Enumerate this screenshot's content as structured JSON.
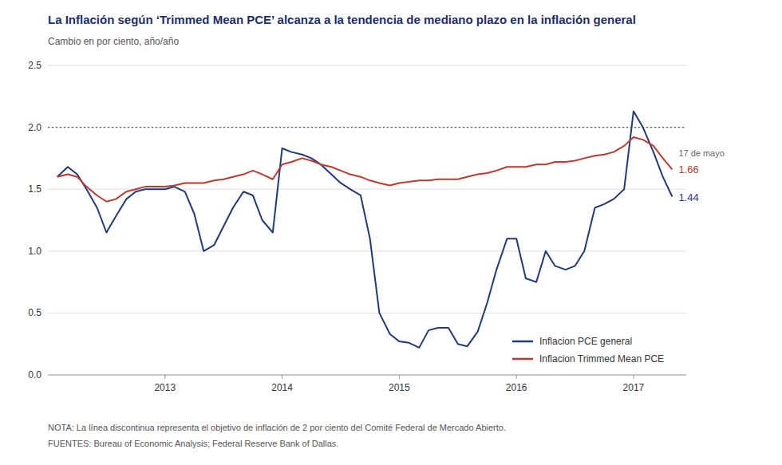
{
  "chart_data": {
    "type": "line",
    "title": "La Inflación según ‘Trimmed Mean PCE’ alcanza a la tendencia de mediano plazo en la inflación general",
    "subtitle": "Cambio en por ciento, año/año",
    "note": "NOTA: La línea discontinua representa el objetivo de inflación de 2 por ciento del Comité Federal de Mercado Abierto.",
    "source": "FUENTES: Bureau of Economic Analysis; Federal Reserve Bank of Dallas.",
    "annotations": [
      "17 de mayo",
      "1.66",
      "1.44"
    ],
    "reference_line": 2.0,
    "xlim": [
      2012.0,
      2017.45
    ],
    "xticks": [
      2013,
      2014,
      2015,
      2016,
      2017
    ],
    "ylim": [
      0.0,
      2.5
    ],
    "yticks": [
      {
        "value": 0.0,
        "label": "0.0"
      },
      0.5,
      {
        "value": 1.0,
        "label": "1.0"
      },
      1.5,
      {
        "value": 2.0,
        "label": "2.0"
      },
      2.5
    ],
    "grid": true,
    "legend": "lower right",
    "x": [
      2012.08,
      2012.17,
      2012.25,
      2012.33,
      2012.42,
      2012.5,
      2012.58,
      2012.67,
      2012.75,
      2012.83,
      2012.92,
      2013.0,
      2013.08,
      2013.17,
      2013.25,
      2013.33,
      2013.42,
      2013.5,
      2013.58,
      2013.67,
      2013.75,
      2013.83,
      2013.92,
      2014.0,
      2014.08,
      2014.17,
      2014.25,
      2014.33,
      2014.42,
      2014.5,
      2014.58,
      2014.67,
      2014.75,
      2014.83,
      2014.92,
      2015.0,
      2015.08,
      2015.17,
      2015.25,
      2015.33,
      2015.42,
      2015.5,
      2015.58,
      2015.67,
      2015.75,
      2015.83,
      2015.92,
      2016.0,
      2016.08,
      2016.17,
      2016.25,
      2016.33,
      2016.42,
      2016.5,
      2016.58,
      2016.67,
      2016.75,
      2016.83,
      2016.92,
      2017.0,
      2017.08,
      2017.17,
      2017.25,
      2017.33
    ],
    "series": [
      {
        "name": "Inflacion PCE general",
        "color": "#1f3a7d",
        "values": [
          1.6,
          1.68,
          1.62,
          1.5,
          1.35,
          1.15,
          1.28,
          1.42,
          1.48,
          1.5,
          1.5,
          1.5,
          1.52,
          1.48,
          1.3,
          1.0,
          1.05,
          1.2,
          1.35,
          1.48,
          1.45,
          1.25,
          1.15,
          1.83,
          1.8,
          1.78,
          1.75,
          1.7,
          1.62,
          1.55,
          1.5,
          1.45,
          1.1,
          0.5,
          0.33,
          0.27,
          0.26,
          0.22,
          0.36,
          0.38,
          0.38,
          0.25,
          0.23,
          0.35,
          0.58,
          0.85,
          1.1,
          1.1,
          0.78,
          0.75,
          1.0,
          0.88,
          0.85,
          0.88,
          1.0,
          1.35,
          1.38,
          1.42,
          1.5,
          2.13,
          2.0,
          1.8,
          1.6,
          1.44
        ]
      },
      {
        "name": "Inflacion Trimmed Mean PCE",
        "color": "#c0392b",
        "values": [
          1.6,
          1.62,
          1.6,
          1.52,
          1.45,
          1.4,
          1.42,
          1.48,
          1.5,
          1.52,
          1.52,
          1.52,
          1.53,
          1.55,
          1.55,
          1.55,
          1.57,
          1.58,
          1.6,
          1.62,
          1.65,
          1.62,
          1.58,
          1.7,
          1.72,
          1.75,
          1.73,
          1.7,
          1.68,
          1.65,
          1.62,
          1.6,
          1.57,
          1.55,
          1.53,
          1.55,
          1.56,
          1.57,
          1.57,
          1.58,
          1.58,
          1.58,
          1.6,
          1.62,
          1.63,
          1.65,
          1.68,
          1.68,
          1.68,
          1.7,
          1.7,
          1.72,
          1.72,
          1.73,
          1.75,
          1.77,
          1.78,
          1.8,
          1.85,
          1.92,
          1.9,
          1.85,
          1.75,
          1.66
        ]
      }
    ]
  }
}
